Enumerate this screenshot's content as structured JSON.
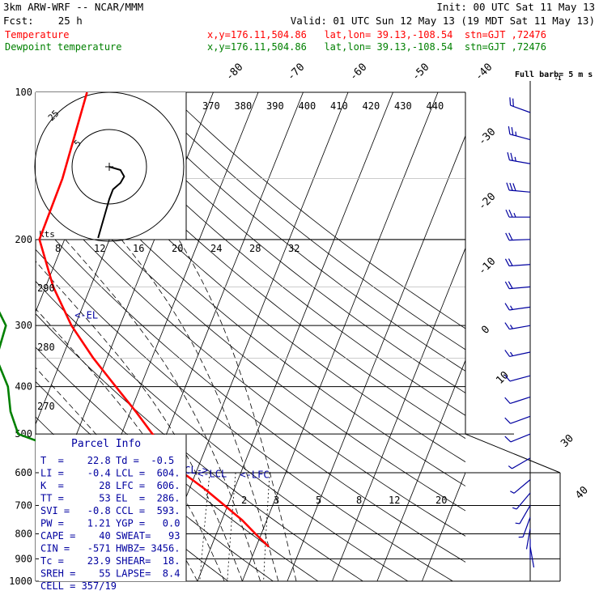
{
  "header": {
    "model": "3km ARW-WRF -- NCAR/MMM",
    "init": "Init: 00 UTC Sat 11 May 13",
    "fcst": "Fcst:    25 h",
    "valid": "Valid: 01 UTC Sun 12 May 13 (19 MDT Sat 11 May 13)",
    "temp_label": "Temperature",
    "temp_info": "x,y=176.11,504.86   lat,lon= 39.13,-108.54  stn=GJT ,72476",
    "dew_label": "Dewpoint temperature",
    "dew_info": "x,y=176.11,504.86   lat,lon= 39.13,-108.54  stn=GJT ,72476"
  },
  "colors": {
    "temperature": "#ff0000",
    "dewpoint": "#008000",
    "wind": "#0000a0",
    "parcel_info": "#0000a0",
    "axes": "#000000"
  },
  "chart_data": {
    "type": "line",
    "title": "",
    "xlabel": "",
    "ylabel": "",
    "pressure_levels": [
      100,
      200,
      300,
      400,
      500,
      600,
      700,
      800,
      900,
      1000
    ],
    "temperature_tick_labels": [
      "-80",
      "-70",
      "-60",
      "-50",
      "-40",
      "-30",
      "-20",
      "-10",
      "0",
      "10",
      "30",
      "40"
    ],
    "theta_labels_top": [
      "370",
      "380",
      "390",
      "400",
      "410",
      "420",
      "430",
      "440"
    ],
    "theta_labels_left": [
      "290",
      "280",
      "270"
    ],
    "mixing_ratio_labels": [
      "2",
      "3",
      "5",
      "8",
      "12",
      "20"
    ],
    "series": [
      {
        "name": "Temperature",
        "color": "#ff0000",
        "points": [
          [
            100,
            -58.1
          ],
          [
            150,
            -55.9
          ],
          [
            200,
            -55.6
          ],
          [
            250,
            -48.3
          ],
          [
            300,
            -40.8
          ],
          [
            350,
            -33.0
          ],
          [
            400,
            -25.5
          ],
          [
            450,
            -18.8
          ],
          [
            500,
            -13.1
          ],
          [
            550,
            -7.5
          ],
          [
            600,
            -2.9
          ],
          [
            650,
            3.7
          ],
          [
            700,
            9.3
          ],
          [
            750,
            14.5
          ],
          [
            800,
            18.7
          ],
          [
            850,
            22.8
          ]
        ]
      },
      {
        "name": "Dewpoint temperature",
        "color": "#008000",
        "points": [
          [
            100,
            -81.5
          ],
          [
            150,
            -77.3
          ],
          [
            200,
            -73.5
          ],
          [
            250,
            -63.1
          ],
          [
            300,
            -55.4
          ],
          [
            350,
            -54.6
          ],
          [
            400,
            -49.5
          ],
          [
            450,
            -46.7
          ],
          [
            500,
            -43.0
          ],
          [
            550,
            -29.0
          ],
          [
            600,
            -7.3
          ],
          [
            650,
            -4.1
          ],
          [
            700,
            -3.8
          ],
          [
            750,
            -3.5
          ],
          [
            800,
            -2.0
          ],
          [
            850,
            -0.5
          ]
        ]
      }
    ],
    "annotations": [
      {
        "text": "<-EL",
        "pressure": 286,
        "temperature": -41.0
      },
      {
        "text": "CCL->",
        "pressure": 593,
        "temperature": -4.0
      },
      {
        "text": "<-LCL",
        "pressure": 604,
        "temperature": 0.5
      },
      {
        "text": "<-LFC",
        "pressure": 606,
        "temperature": 10.0
      }
    ],
    "hodograph": {
      "units": "kts",
      "ring_labels": [
        "5",
        "25"
      ],
      "axis_tick_labels": [
        "8",
        "12",
        "16",
        "20",
        "24",
        "28",
        "32"
      ],
      "trace_uv": [
        [
          0,
          0
        ],
        [
          3,
          -1
        ],
        [
          4,
          -3
        ],
        [
          3,
          -5
        ],
        [
          1,
          -7
        ],
        [
          0,
          -10
        ],
        [
          -1,
          -14
        ],
        [
          -2,
          -18
        ],
        [
          -3,
          -22
        ]
      ]
    },
    "wind_column_title": "Full barb= 5 m s",
    "wind_column_superscript": "-1",
    "winds": [
      {
        "p": 110,
        "speed_ms": 11,
        "dir_deg": 290
      },
      {
        "p": 125,
        "speed_ms": 13,
        "dir_deg": 285
      },
      {
        "p": 140,
        "speed_ms": 14,
        "dir_deg": 280
      },
      {
        "p": 160,
        "speed_ms": 15,
        "dir_deg": 275
      },
      {
        "p": 180,
        "speed_ms": 14,
        "dir_deg": 270
      },
      {
        "p": 200,
        "speed_ms": 12,
        "dir_deg": 268
      },
      {
        "p": 225,
        "speed_ms": 11,
        "dir_deg": 266
      },
      {
        "p": 250,
        "speed_ms": 10,
        "dir_deg": 265
      },
      {
        "p": 275,
        "speed_ms": 9,
        "dir_deg": 262
      },
      {
        "p": 300,
        "speed_ms": 8,
        "dir_deg": 260
      },
      {
        "p": 340,
        "speed_ms": 8,
        "dir_deg": 258
      },
      {
        "p": 380,
        "speed_ms": 7,
        "dir_deg": 255
      },
      {
        "p": 420,
        "speed_ms": 6,
        "dir_deg": 252
      },
      {
        "p": 460,
        "speed_ms": 6,
        "dir_deg": 250
      },
      {
        "p": 500,
        "speed_ms": 5,
        "dir_deg": 248
      },
      {
        "p": 560,
        "speed_ms": 4,
        "dir_deg": 240
      },
      {
        "p": 620,
        "speed_ms": 4,
        "dir_deg": 230
      },
      {
        "p": 660,
        "speed_ms": 3,
        "dir_deg": 220
      },
      {
        "p": 700,
        "speed_ms": 3,
        "dir_deg": 210
      },
      {
        "p": 740,
        "speed_ms": 3,
        "dir_deg": 200
      },
      {
        "p": 780,
        "speed_ms": 2,
        "dir_deg": 190
      },
      {
        "p": 820,
        "speed_ms": 2,
        "dir_deg": 180
      },
      {
        "p": 850,
        "speed_ms": 2,
        "dir_deg": 170
      }
    ]
  },
  "parcel_info": {
    "title": "Parcel Info",
    "rows": [
      [
        "T  =    22.8",
        "Td =  -0.5"
      ],
      [
        "LI =    -0.4",
        "LCL =  604."
      ],
      [
        "K  =      28",
        "LFC =  606."
      ],
      [
        "TT =      53",
        "EL  =  286."
      ],
      [
        "SVI =   -0.8",
        "CCL =  593."
      ],
      [
        "PW =    1.21",
        "YGP =   0.0"
      ],
      [
        "CAPE =    40",
        "SWEAT=   93"
      ],
      [
        "CIN =   -571",
        "HWBZ= 3456."
      ],
      [
        "Tc =    23.9",
        "SHEAR=  18."
      ],
      [
        "SREH =    55",
        "LAPSE=  8.4"
      ],
      [
        "CELL = 357/19",
        ""
      ]
    ]
  }
}
